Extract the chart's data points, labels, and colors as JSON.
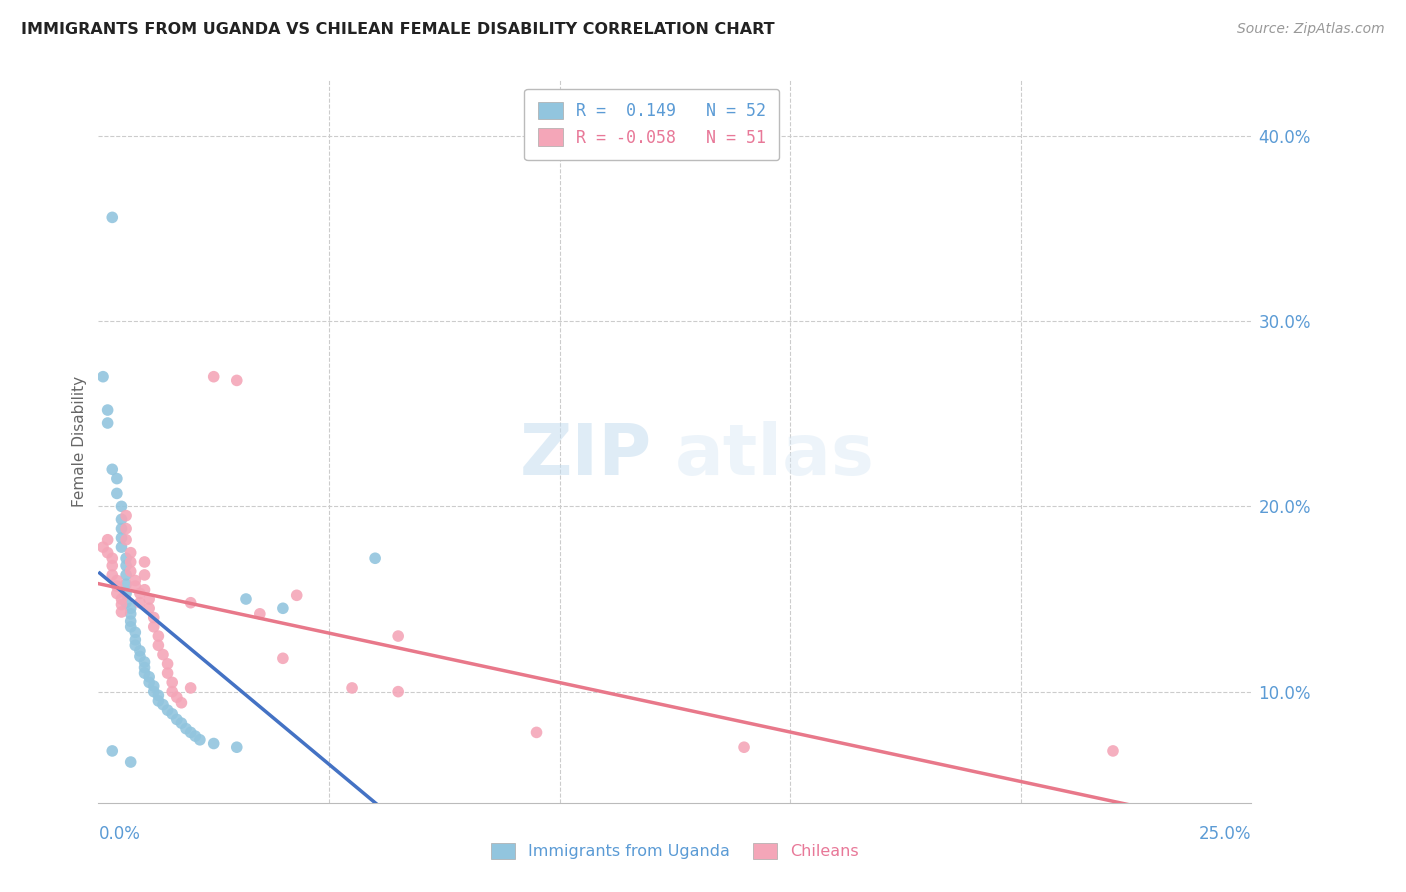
{
  "title": "IMMIGRANTS FROM UGANDA VS CHILEAN FEMALE DISABILITY CORRELATION CHART",
  "source": "Source: ZipAtlas.com",
  "ylabel": "Female Disability",
  "right_yticks": [
    "10.0%",
    "20.0%",
    "30.0%",
    "40.0%"
  ],
  "right_ytick_vals": [
    0.1,
    0.2,
    0.3,
    0.4
  ],
  "xlim": [
    0.0,
    0.25
  ],
  "ylim": [
    0.04,
    0.43
  ],
  "blue_color": "#92C5DE",
  "pink_color": "#F4A6B8",
  "trend_blue_solid": "#4472C4",
  "trend_blue_dashed": "#92C5DE",
  "trend_pink": "#E8788A",
  "watermark_text": "ZIP",
  "watermark_text2": "atlas",
  "blue_points": [
    [
      0.001,
      0.27
    ],
    [
      0.002,
      0.252
    ],
    [
      0.002,
      0.245
    ],
    [
      0.003,
      0.356
    ],
    [
      0.003,
      0.22
    ],
    [
      0.004,
      0.215
    ],
    [
      0.004,
      0.207
    ],
    [
      0.005,
      0.2
    ],
    [
      0.005,
      0.193
    ],
    [
      0.005,
      0.188
    ],
    [
      0.005,
      0.183
    ],
    [
      0.005,
      0.178
    ],
    [
      0.006,
      0.172
    ],
    [
      0.006,
      0.168
    ],
    [
      0.006,
      0.163
    ],
    [
      0.006,
      0.158
    ],
    [
      0.006,
      0.153
    ],
    [
      0.006,
      0.148
    ],
    [
      0.007,
      0.145
    ],
    [
      0.007,
      0.142
    ],
    [
      0.007,
      0.138
    ],
    [
      0.007,
      0.135
    ],
    [
      0.008,
      0.132
    ],
    [
      0.008,
      0.128
    ],
    [
      0.008,
      0.125
    ],
    [
      0.009,
      0.122
    ],
    [
      0.009,
      0.119
    ],
    [
      0.01,
      0.116
    ],
    [
      0.01,
      0.113
    ],
    [
      0.01,
      0.11
    ],
    [
      0.011,
      0.108
    ],
    [
      0.011,
      0.105
    ],
    [
      0.012,
      0.103
    ],
    [
      0.012,
      0.1
    ],
    [
      0.013,
      0.098
    ],
    [
      0.013,
      0.095
    ],
    [
      0.014,
      0.093
    ],
    [
      0.015,
      0.09
    ],
    [
      0.016,
      0.088
    ],
    [
      0.017,
      0.085
    ],
    [
      0.018,
      0.083
    ],
    [
      0.019,
      0.08
    ],
    [
      0.02,
      0.078
    ],
    [
      0.021,
      0.076
    ],
    [
      0.022,
      0.074
    ],
    [
      0.025,
      0.072
    ],
    [
      0.03,
      0.07
    ],
    [
      0.032,
      0.15
    ],
    [
      0.04,
      0.145
    ],
    [
      0.06,
      0.172
    ],
    [
      0.003,
      0.068
    ],
    [
      0.007,
      0.062
    ]
  ],
  "pink_points": [
    [
      0.001,
      0.178
    ],
    [
      0.002,
      0.182
    ],
    [
      0.002,
      0.175
    ],
    [
      0.003,
      0.172
    ],
    [
      0.003,
      0.168
    ],
    [
      0.003,
      0.163
    ],
    [
      0.004,
      0.16
    ],
    [
      0.004,
      0.157
    ],
    [
      0.004,
      0.153
    ],
    [
      0.005,
      0.15
    ],
    [
      0.005,
      0.147
    ],
    [
      0.005,
      0.143
    ],
    [
      0.006,
      0.195
    ],
    [
      0.006,
      0.188
    ],
    [
      0.006,
      0.182
    ],
    [
      0.007,
      0.175
    ],
    [
      0.007,
      0.17
    ],
    [
      0.007,
      0.165
    ],
    [
      0.008,
      0.16
    ],
    [
      0.008,
      0.157
    ],
    [
      0.009,
      0.153
    ],
    [
      0.009,
      0.148
    ],
    [
      0.01,
      0.17
    ],
    [
      0.01,
      0.163
    ],
    [
      0.01,
      0.155
    ],
    [
      0.011,
      0.15
    ],
    [
      0.011,
      0.145
    ],
    [
      0.012,
      0.14
    ],
    [
      0.012,
      0.135
    ],
    [
      0.013,
      0.13
    ],
    [
      0.013,
      0.125
    ],
    [
      0.014,
      0.12
    ],
    [
      0.015,
      0.115
    ],
    [
      0.015,
      0.11
    ],
    [
      0.016,
      0.105
    ],
    [
      0.016,
      0.1
    ],
    [
      0.017,
      0.097
    ],
    [
      0.018,
      0.094
    ],
    [
      0.02,
      0.148
    ],
    [
      0.02,
      0.102
    ],
    [
      0.025,
      0.27
    ],
    [
      0.03,
      0.268
    ],
    [
      0.035,
      0.142
    ],
    [
      0.04,
      0.118
    ],
    [
      0.043,
      0.152
    ],
    [
      0.055,
      0.102
    ],
    [
      0.065,
      0.1
    ],
    [
      0.065,
      0.13
    ],
    [
      0.095,
      0.078
    ],
    [
      0.14,
      0.07
    ],
    [
      0.22,
      0.068
    ]
  ]
}
